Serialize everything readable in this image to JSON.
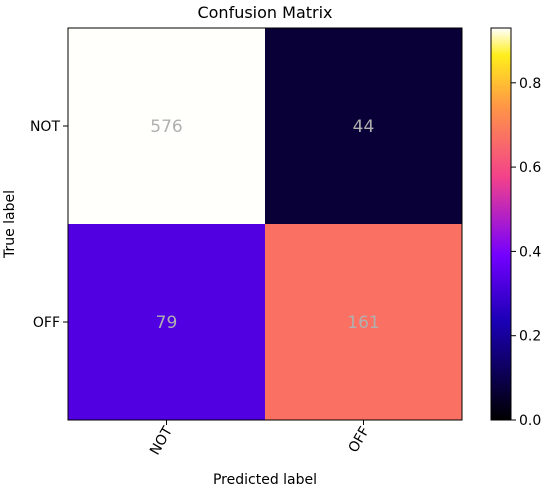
{
  "chart_data": {
    "type": "heatmap",
    "title": "Confusion Matrix",
    "xlabel": "Predicted label",
    "ylabel": "True label",
    "x_categories": [
      "NOT",
      "OFF"
    ],
    "y_categories": [
      "NOT",
      "OFF"
    ],
    "values": [
      [
        576,
        44
      ],
      [
        79,
        161
      ]
    ],
    "normalized": [
      [
        0.929,
        0.071
      ],
      [
        0.329,
        0.671
      ]
    ],
    "colorbar": {
      "range": [
        0.0,
        0.93
      ],
      "ticks": [
        "0.0",
        "0.2",
        "0.4",
        "0.6",
        "0.8"
      ],
      "tick_values": [
        0.0,
        0.2,
        0.4,
        0.6,
        0.8
      ],
      "colormap": "gnuplot2"
    },
    "cell_text_color": "#b0b0b0"
  }
}
